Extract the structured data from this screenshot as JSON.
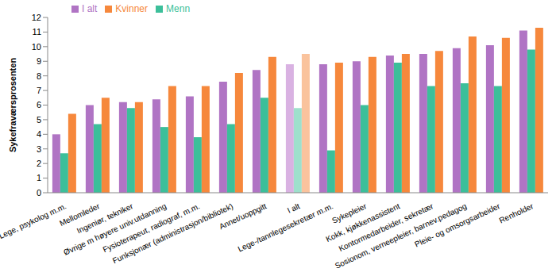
{
  "chart_data": {
    "type": "bar",
    "y_label": "Sykefraværsprosenten",
    "categories": [
      "Lege, psykolog m.m.",
      "Mellomleder",
      "Ingeniør, tekniker",
      "Øvrige m høyere univ.utdanning",
      "Fysioterapeut, radiograf, m.m.",
      "Funksjonær (administrasjon/bibliotek)",
      "Annet/uoppgitt",
      "I alt",
      "Lege-/tannlegesekretær m.m.",
      "Sykepleier",
      "Kokk, kjøkkenassistent",
      "Kontormedarbeider, sekretær",
      "Sosionom, verneepleier, barnev.pedagog",
      "Pleie- og omsorgsarbeider",
      "Renholder"
    ],
    "series": [
      {
        "name": "I alt",
        "color": "#b074c4",
        "colors": [
          "#b074c4",
          "#b074c4",
          "#b074c4",
          "#b074c4",
          "#b074c4",
          "#b074c4",
          "#b074c4",
          "#d9b2e2",
          "#b074c4",
          "#b074c4",
          "#b074c4",
          "#b074c4",
          "#b074c4",
          "#b074c4",
          "#b074c4"
        ],
        "values": [
          4.0,
          6.0,
          6.2,
          6.4,
          6.6,
          7.6,
          8.4,
          8.8,
          8.8,
          9.0,
          9.4,
          9.5,
          9.9,
          10.1,
          11.1
        ]
      },
      {
        "name": "Menn",
        "color": "#3cbf9a",
        "colors": [
          "#3cbf9a",
          "#3cbf9a",
          "#3cbf9a",
          "#3cbf9a",
          "#3cbf9a",
          "#3cbf9a",
          "#3cbf9a",
          "#9ee0cc",
          "#3cbf9a",
          "#3cbf9a",
          "#3cbf9a",
          "#3cbf9a",
          "#3cbf9a",
          "#3cbf9a",
          "#3cbf9a"
        ],
        "values": [
          2.7,
          4.7,
          5.8,
          4.5,
          3.8,
          4.7,
          6.5,
          5.8,
          2.9,
          6.0,
          8.9,
          7.3,
          7.5,
          7.3,
          9.8
        ]
      },
      {
        "name": "Kvinner",
        "color": "#f6883c",
        "colors": [
          "#f6883c",
          "#f6883c",
          "#f6883c",
          "#f6883c",
          "#f6883c",
          "#f6883c",
          "#f6883c",
          "#fac39d",
          "#f6883c",
          "#f6883c",
          "#f6883c",
          "#f6883c",
          "#f6883c",
          "#f6883c",
          "#f6883c"
        ],
        "values": [
          5.4,
          6.5,
          6.2,
          7.3,
          7.3,
          8.2,
          9.3,
          9.5,
          8.9,
          9.3,
          9.5,
          9.7,
          10.7,
          10.6,
          11.3
        ]
      }
    ],
    "ylim": [
      0,
      12
    ],
    "yticks": [
      0,
      1,
      2,
      3,
      4,
      5,
      6,
      7,
      8,
      9,
      10,
      11,
      12
    ],
    "grid": false,
    "legend": "upper left"
  }
}
